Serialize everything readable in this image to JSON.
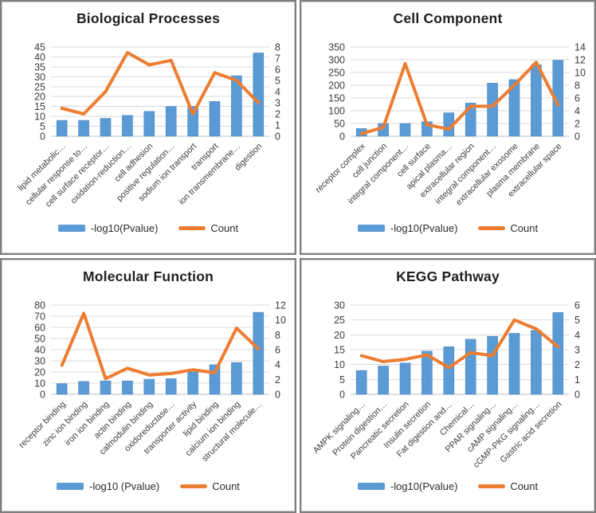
{
  "colors": {
    "bar": "#5B9BD5",
    "bar_border": "#4A86C0",
    "line": "#ED7D31",
    "grid": "#D9D9D9",
    "axis_line": "#BFBFBF",
    "tick_text": "#3B3B3B",
    "title_text": "#1F1F1F",
    "panel_border": "#7E7E7E",
    "background": "#FFFFFF"
  },
  "chart_data": [
    {
      "type": "combo_bar_line",
      "title": "Biological Processes",
      "categories": [
        "lipid metabolic…",
        "cellular response to…",
        "cell surface receptor…",
        "oxidation-reduction…",
        "cell adhesion",
        "positive regulation…",
        "sodium ion transport",
        "transport",
        "ion transmembrane…",
        "digestion"
      ],
      "series": [
        {
          "name": "-log10(Pvalue)",
          "type": "bar",
          "axis": "left",
          "values": [
            8,
            8,
            9,
            10.5,
            12.5,
            15,
            15,
            17.5,
            30.5,
            42
          ]
        },
        {
          "name": "Count",
          "type": "line",
          "axis": "right",
          "values": [
            2.5,
            2,
            4,
            7.5,
            6.4,
            6.8,
            2,
            5.7,
            5,
            3
          ]
        }
      ],
      "left_axis": {
        "min": 0,
        "max": 45,
        "step": 5
      },
      "right_axis": {
        "min": 0,
        "max": 8,
        "step": 1
      },
      "grid": true,
      "legend_position": "bottom"
    },
    {
      "type": "combo_bar_line",
      "title": "Cell Component",
      "categories": [
        "receptor complex",
        "cell junction",
        "integral component…",
        "cell surface",
        "apical plasma…",
        "extracellular region",
        "integral component…",
        "extracellular exosome",
        "plasma membrane",
        "extracellular space"
      ],
      "series": [
        {
          "name": "-log10(Pvalue)",
          "type": "bar",
          "axis": "left",
          "values": [
            30,
            50,
            50,
            57,
            92,
            130,
            208,
            222,
            280,
            298
          ]
        },
        {
          "name": "Count",
          "type": "line",
          "axis": "right",
          "values": [
            0.4,
            1.4,
            11.4,
            1.8,
            1.1,
            4.7,
            4.7,
            8,
            11.6,
            4.9
          ]
        }
      ],
      "left_axis": {
        "min": 0,
        "max": 350,
        "step": 50
      },
      "right_axis": {
        "min": 0,
        "max": 14,
        "step": 2
      },
      "grid": true,
      "legend_position": "bottom"
    },
    {
      "type": "combo_bar_line",
      "title": "Molecular Function",
      "categories": [
        "receptor binding",
        "zinc ion binding",
        "iron ion binding",
        "actin binding",
        "calmodulin binding",
        "oxidoreductase…",
        "transporter activity",
        "lipid binding",
        "calcium ion binding",
        "structural molecule…"
      ],
      "series": [
        {
          "name": "-log10 (Pvalue)",
          "type": "bar",
          "axis": "left",
          "values": [
            9.5,
            11.5,
            12,
            12,
            13.5,
            14,
            20,
            26.5,
            28.5,
            73.5
          ]
        },
        {
          "name": "Count",
          "type": "line",
          "axis": "right",
          "values": [
            3.9,
            10.9,
            2.1,
            3.5,
            2.6,
            2.8,
            3.3,
            2.9,
            8.9,
            6.1
          ]
        }
      ],
      "left_axis": {
        "min": 0,
        "max": 80,
        "step": 10
      },
      "right_axis": {
        "min": 0,
        "max": 12,
        "step": 2
      },
      "grid": true,
      "legend_position": "bottom"
    },
    {
      "type": "combo_bar_line",
      "title": "KEGG Pathway",
      "categories": [
        "AMPK signaling…",
        "Protein digestion…",
        "Pancreatic secretion",
        "Insulin secretion",
        "Fat digestion and…",
        "Chemical…",
        "PPAR signaling…",
        "cAMP signaling…",
        "cGMP-PKG signaling…",
        "Gastric acid secretion"
      ],
      "series": [
        {
          "name": "-log10(Pvalue)",
          "type": "bar",
          "axis": "left",
          "values": [
            8,
            9.5,
            10.5,
            14.5,
            16,
            18.5,
            19.5,
            20.5,
            21.5,
            27.5
          ]
        },
        {
          "name": "Count",
          "type": "line",
          "axis": "right",
          "values": [
            2.6,
            2.2,
            2.35,
            2.65,
            1.8,
            2.8,
            2.6,
            5,
            4.4,
            3.2
          ]
        }
      ],
      "left_axis": {
        "min": 0,
        "max": 30,
        "step": 5
      },
      "right_axis": {
        "min": 0,
        "max": 6,
        "step": 1
      },
      "grid": true,
      "legend_position": "bottom"
    }
  ]
}
